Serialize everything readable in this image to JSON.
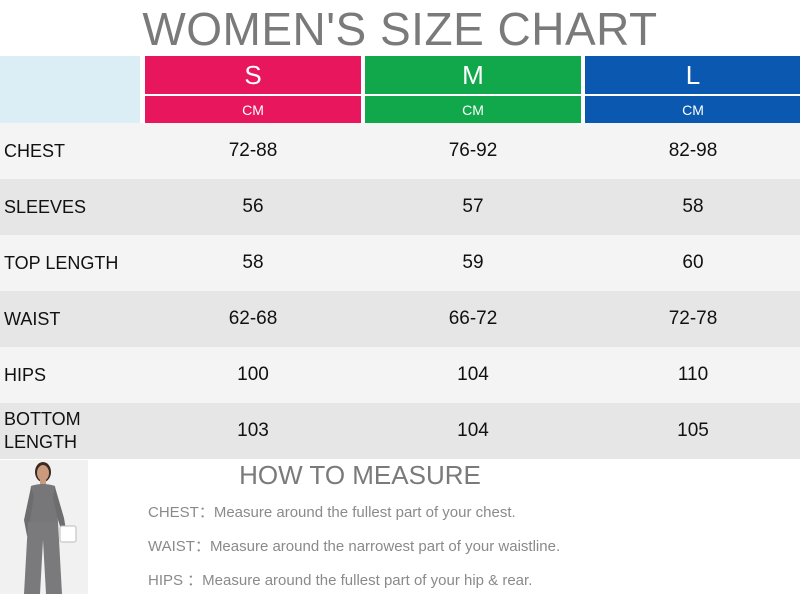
{
  "title": "WOMEN'S SIZE CHART",
  "colors": {
    "S": "#e8175d",
    "M": "#10a84a",
    "L": "#0a58b0",
    "corner": "#dceef5",
    "row_light": "#f4f4f4",
    "row_dark": "#e6e6e6"
  },
  "sizes": [
    {
      "label": "S",
      "unit": "CM"
    },
    {
      "label": "M",
      "unit": "CM"
    },
    {
      "label": "L",
      "unit": "CM"
    }
  ],
  "rows": [
    {
      "label": "CHEST",
      "values": [
        "72-88",
        "76-92",
        "82-98"
      ]
    },
    {
      "label": "SLEEVES",
      "values": [
        "56",
        "57",
        "58"
      ]
    },
    {
      "label": "TOP LENGTH",
      "values": [
        "58",
        "59",
        "60"
      ]
    },
    {
      "label": "WAIST",
      "values": [
        "62-68",
        "66-72",
        "72-78"
      ]
    },
    {
      "label": "HIPS",
      "values": [
        "100",
        "104",
        "110"
      ]
    },
    {
      "label": "BOTTOM LENGTH",
      "values": [
        "103",
        "104",
        "105"
      ]
    }
  ],
  "how_to_measure": {
    "title": "HOW TO MEASURE",
    "tips": [
      "CHEST：Measure around the fullest part of your chest.",
      "WAIST：Measure around the narrowest part of your waistline.",
      "HIPS ：Measure around the fullest part of your hip & rear."
    ]
  }
}
